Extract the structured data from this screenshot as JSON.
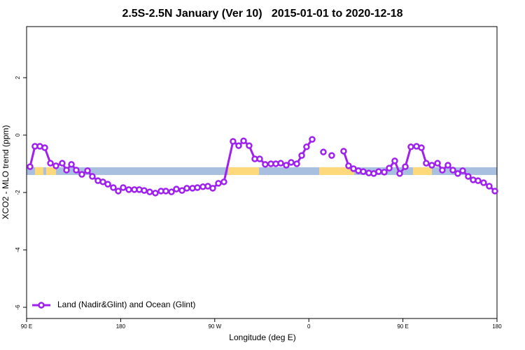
{
  "chart_data": {
    "type": "line",
    "title": "2.5S-2.5N January (Ver 10)   2015-01-01 to 2020-12-18",
    "x_label": "Longitude (deg E)",
    "y_label": "XCO2 - MLO trend (ppm)",
    "xlim": [
      90,
      540
    ],
    "ylim": [
      -6.39,
      3.78
    ],
    "xticks": [
      {
        "value": 90,
        "label": "90 E"
      },
      180,
      {
        "value": 270,
        "label": "90 W"
      },
      {
        "value": 360,
        "label": "0"
      },
      {
        "value": 450,
        "label": "90 E"
      },
      {
        "value": 540,
        "label": "180"
      }
    ],
    "yticks": [
      2,
      0,
      -2,
      -4,
      -6
    ],
    "legend": "bottom left",
    "band": {
      "ylim": [
        -1.39,
        -1.12
      ],
      "ocean_color": "#a9bfdf",
      "land_color": "#fed97c",
      "land_ranges": [
        [
          98,
          106
        ],
        [
          108.7,
          118.1
        ],
        [
          282.8,
          312.3
        ],
        [
          369.9,
          403.4
        ],
        [
          459.6,
          477.7
        ]
      ]
    },
    "x": [
      93.3,
      98.0,
      102.7,
      107.4,
      112.8,
      118.1,
      124.1,
      128.2,
      132.9,
      137.5,
      142.9,
      148.3,
      152.9,
      158.3,
      163.0,
      167.7,
      173.0,
      177.7,
      182.4,
      187.8,
      193.1,
      197.8,
      202.5,
      207.8,
      213.2,
      218.6,
      223.2,
      228.6,
      233.3,
      238.7,
      243.3,
      248.7,
      253.4,
      258.7,
      263.4,
      268.1,
      273.5,
      278.8,
      287.5,
      292.9,
      297.6,
      302.9,
      308.3,
      313.0,
      318.3,
      323.7,
      328.4,
      333.1,
      338.4,
      343.1,
      348.5,
      353.2,
      357.8,
      363.2,
      368.6,
      373.9,
      378.0,
      381.9,
      387.0,
      393.3,
      398.0,
      402.7,
      407.4,
      412.1,
      417.4,
      422.1,
      426.8,
      432.2,
      436.9,
      442.2,
      446.9,
      452.3,
      457.6,
      463.0,
      467.7,
      472.3,
      477.7,
      483.1,
      487.7,
      493.1,
      497.8,
      502.5,
      507.2,
      512.5,
      517.2,
      521.9,
      527.2,
      532.6,
      538.0
    ],
    "series": [
      {
        "name": "Land (Nadir&Glint) and Ocean (Glint)",
        "color": "#a020f0",
        "values": [
          -1.1,
          -0.39,
          -0.39,
          -0.44,
          -0.98,
          -1.07,
          -0.98,
          -1.22,
          -1.02,
          -1.22,
          -1.37,
          -1.24,
          -1.44,
          -1.59,
          -1.63,
          -1.71,
          -1.83,
          -1.95,
          -1.83,
          -1.9,
          -1.9,
          -1.9,
          -1.93,
          -1.98,
          -2.02,
          -1.95,
          -1.95,
          -1.98,
          -1.88,
          -1.93,
          -1.85,
          -1.85,
          -1.83,
          -1.8,
          -1.78,
          -1.85,
          -1.68,
          -1.63,
          -0.22,
          -0.37,
          -0.2,
          -0.37,
          -0.83,
          -0.83,
          -1.02,
          -1.0,
          -1.0,
          -0.98,
          -1.05,
          -0.95,
          -1.0,
          -0.71,
          -0.41,
          -0.15,
          null,
          -0.59,
          null,
          -0.71,
          null,
          -0.56,
          -1.07,
          -1.17,
          -1.24,
          -1.27,
          -1.32,
          -1.34,
          -1.27,
          -1.29,
          -1.15,
          -0.9,
          -1.34,
          -1.1,
          -0.41,
          -0.39,
          -0.44,
          -0.98,
          -1.05,
          -0.98,
          -1.22,
          -1.05,
          -1.22,
          -1.34,
          -1.24,
          -1.44,
          -1.56,
          -1.59,
          -1.66,
          -1.78,
          -1.95
        ]
      }
    ]
  }
}
